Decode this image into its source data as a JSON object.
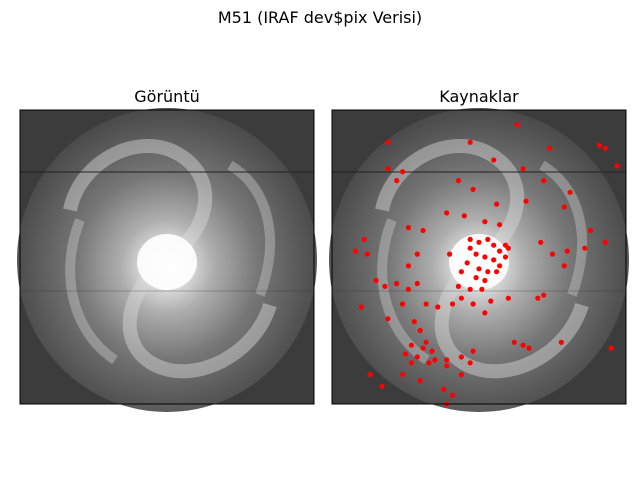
{
  "figure": {
    "title": "M51 (IRAF dev$pix Verisi)"
  },
  "chart_data": [
    {
      "type": "image",
      "title": "Görüntü",
      "image": "grayscale galaxy image M51",
      "colormap": "gray",
      "axes_visible": false
    },
    {
      "type": "scatter",
      "title": "Kaynaklar",
      "background": "grayscale galaxy image M51",
      "marker_color": "#ff0000",
      "axes_visible": false,
      "x_range": [
        0,
        1
      ],
      "y_range": [
        0,
        1
      ],
      "points": [
        [
          0.19,
          0.11
        ],
        [
          0.47,
          0.11
        ],
        [
          0.63,
          0.05
        ],
        [
          0.74,
          0.13
        ],
        [
          0.91,
          0.12
        ],
        [
          0.93,
          0.13
        ],
        [
          0.97,
          0.19
        ],
        [
          0.55,
          0.17
        ],
        [
          0.65,
          0.2
        ],
        [
          0.19,
          0.2
        ],
        [
          0.24,
          0.21
        ],
        [
          0.22,
          0.24
        ],
        [
          0.43,
          0.24
        ],
        [
          0.48,
          0.27
        ],
        [
          0.72,
          0.24
        ],
        [
          0.66,
          0.31
        ],
        [
          0.56,
          0.32
        ],
        [
          0.81,
          0.28
        ],
        [
          0.39,
          0.35
        ],
        [
          0.26,
          0.4
        ],
        [
          0.31,
          0.41
        ],
        [
          0.45,
          0.36
        ],
        [
          0.52,
          0.38
        ],
        [
          0.57,
          0.39
        ],
        [
          0.79,
          0.33
        ],
        [
          0.88,
          0.41
        ],
        [
          0.11,
          0.44
        ],
        [
          0.12,
          0.49
        ],
        [
          0.08,
          0.48
        ],
        [
          0.29,
          0.49
        ],
        [
          0.26,
          0.53
        ],
        [
          0.4,
          0.49
        ],
        [
          0.47,
          0.47
        ],
        [
          0.59,
          0.46
        ],
        [
          0.71,
          0.45
        ],
        [
          0.75,
          0.49
        ],
        [
          0.79,
          0.53
        ],
        [
          0.86,
          0.47
        ],
        [
          0.93,
          0.45
        ],
        [
          0.8,
          0.48
        ],
        [
          0.47,
          0.44
        ],
        [
          0.5,
          0.45
        ],
        [
          0.53,
          0.44
        ],
        [
          0.55,
          0.46
        ],
        [
          0.57,
          0.48
        ],
        [
          0.49,
          0.49
        ],
        [
          0.52,
          0.5
        ],
        [
          0.55,
          0.51
        ],
        [
          0.57,
          0.53
        ],
        [
          0.46,
          0.52
        ],
        [
          0.5,
          0.54
        ],
        [
          0.53,
          0.55
        ],
        [
          0.49,
          0.57
        ],
        [
          0.52,
          0.58
        ],
        [
          0.56,
          0.55
        ],
        [
          0.59,
          0.5
        ],
        [
          0.6,
          0.47
        ],
        [
          0.44,
          0.55
        ],
        [
          0.43,
          0.6
        ],
        [
          0.47,
          0.61
        ],
        [
          0.51,
          0.61
        ],
        [
          0.44,
          0.64
        ],
        [
          0.48,
          0.66
        ],
        [
          0.41,
          0.66
        ],
        [
          0.15,
          0.58
        ],
        [
          0.18,
          0.6
        ],
        [
          0.22,
          0.59
        ],
        [
          0.26,
          0.61
        ],
        [
          0.29,
          0.59
        ],
        [
          0.24,
          0.66
        ],
        [
          0.1,
          0.67
        ],
        [
          0.19,
          0.71
        ],
        [
          0.28,
          0.72
        ],
        [
          0.32,
          0.66
        ],
        [
          0.36,
          0.67
        ],
        [
          0.54,
          0.65
        ],
        [
          0.6,
          0.64
        ],
        [
          0.7,
          0.64
        ],
        [
          0.72,
          0.63
        ],
        [
          0.52,
          0.69
        ],
        [
          0.3,
          0.75
        ],
        [
          0.32,
          0.79
        ],
        [
          0.34,
          0.82
        ],
        [
          0.29,
          0.84
        ],
        [
          0.31,
          0.81
        ],
        [
          0.27,
          0.8
        ],
        [
          0.25,
          0.83
        ],
        [
          0.27,
          0.86
        ],
        [
          0.35,
          0.85
        ],
        [
          0.33,
          0.86
        ],
        [
          0.39,
          0.85
        ],
        [
          0.44,
          0.84
        ],
        [
          0.47,
          0.86
        ],
        [
          0.39,
          0.87
        ],
        [
          0.44,
          0.9
        ],
        [
          0.3,
          0.92
        ],
        [
          0.24,
          0.9
        ],
        [
          0.38,
          0.95
        ],
        [
          0.48,
          0.82
        ],
        [
          0.62,
          0.79
        ],
        [
          0.65,
          0.8
        ],
        [
          0.67,
          0.81
        ],
        [
          0.78,
          0.79
        ],
        [
          0.95,
          0.81
        ],
        [
          0.13,
          0.9
        ],
        [
          0.17,
          0.94
        ],
        [
          0.39,
          1.0
        ],
        [
          0.41,
          0.97
        ]
      ]
    }
  ]
}
